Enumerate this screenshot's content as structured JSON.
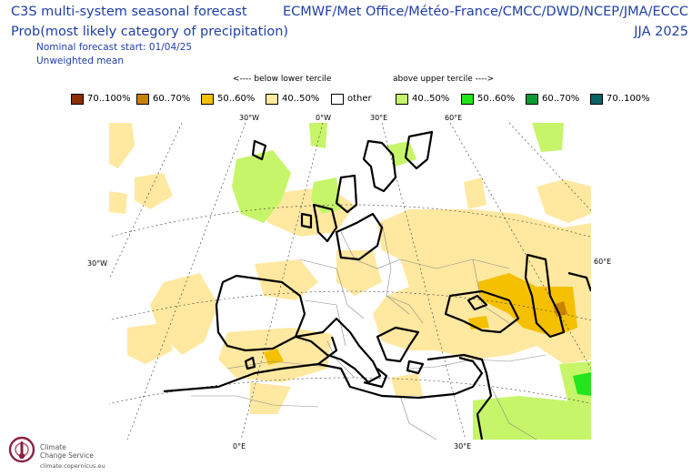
{
  "header": {
    "title_left": "C3S multi-system seasonal forecast",
    "subtitle_left": "Prob(most likely category of precipitation)",
    "nominal_start": "Nominal forecast start: 01/04/25",
    "weighting": "Unweighted mean",
    "title_right": "ECMWF/Met Office/Météo-France/CMCC/DWD/NCEP/JMA/ECCC",
    "season": "JJA 2025"
  },
  "legend": {
    "below_label": "<---- below lower tercile",
    "above_label": "above upper tercile ---->",
    "items": [
      {
        "label": "70..100%",
        "color": "#8b2e00"
      },
      {
        "label": "60..70%",
        "color": "#c98200"
      },
      {
        "label": "50..60%",
        "color": "#f5c000"
      },
      {
        "label": "40..50%",
        "color": "#ffe8a0"
      },
      {
        "label": "other",
        "color": "#ffffff"
      },
      {
        "label": "40..50%",
        "color": "#c6f56a"
      },
      {
        "label": "50..60%",
        "color": "#22e61a"
      },
      {
        "label": "60..70%",
        "color": "#0a9a36"
      },
      {
        "label": "70..100%",
        "color": "#0a6463"
      }
    ]
  },
  "map": {
    "lon_labels": {
      "top_30w": "30°W",
      "top_0": "0°W",
      "top_30e": "30°E",
      "top_60e": "60°E",
      "left_30w": "30°W",
      "right_60e": "60°E",
      "bottom_0": "0°E",
      "bottom_30e": "30°E"
    }
  },
  "logo": {
    "name_line1": "Climate",
    "name_line2": "Change Service",
    "url": "climate.copernicus.eu"
  }
}
